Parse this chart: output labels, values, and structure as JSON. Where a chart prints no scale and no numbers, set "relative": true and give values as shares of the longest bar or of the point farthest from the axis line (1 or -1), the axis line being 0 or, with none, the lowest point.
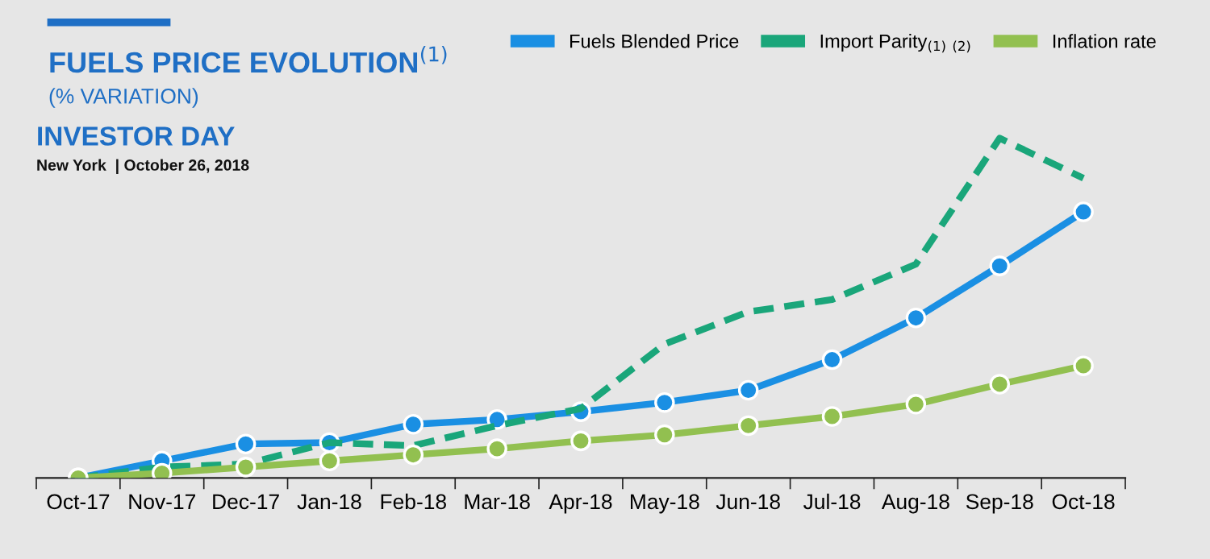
{
  "chart_data": {
    "type": "line",
    "title": "FUELS PRICE EVOLUTION$^{(1)}$",
    "subtitle": "(% VARIATION)",
    "annotations": [
      "INVESTOR DAY",
      "New York  | October 26, 2018"
    ],
    "relative": true,
    "legend": "top right",
    "grid": false,
    "line_style": "solid",
    "marker": "circle",
    "categories": [
      "Oct-17",
      "Nov-17",
      "Dec-17",
      "Jan-18",
      "Feb-18",
      "Mar-18",
      "Apr-18",
      "May-18",
      "Jun-18",
      "Jul-18",
      "Aug-18",
      "Sep-18",
      "Oct-18"
    ],
    "series": [
      {
        "name": "Fuels Blended Price",
        "color": "#1a8fe3",
        "values": [
          0,
          0.05,
          0.1,
          0.104,
          0.158,
          0.172,
          0.195,
          0.222,
          0.258,
          0.348,
          0.471,
          0.624,
          0.783
        ]
      },
      {
        "name": "Import Parity$_{(1)}$ $_{(2)}$",
        "color": "#1aa67a",
        "line_style": "dashed",
        "marker": "none",
        "values": [
          0,
          0.032,
          0.041,
          0.104,
          0.095,
          0.154,
          0.204,
          0.394,
          0.489,
          0.525,
          0.629,
          1,
          0.882
        ]
      },
      {
        "name": "Inflation rate",
        "color": "#92c050",
        "values": [
          0,
          0.014,
          0.032,
          0.05,
          0.068,
          0.086,
          0.109,
          0.127,
          0.154,
          0.181,
          0.217,
          0.276,
          0.33
        ]
      }
    ]
  }
}
